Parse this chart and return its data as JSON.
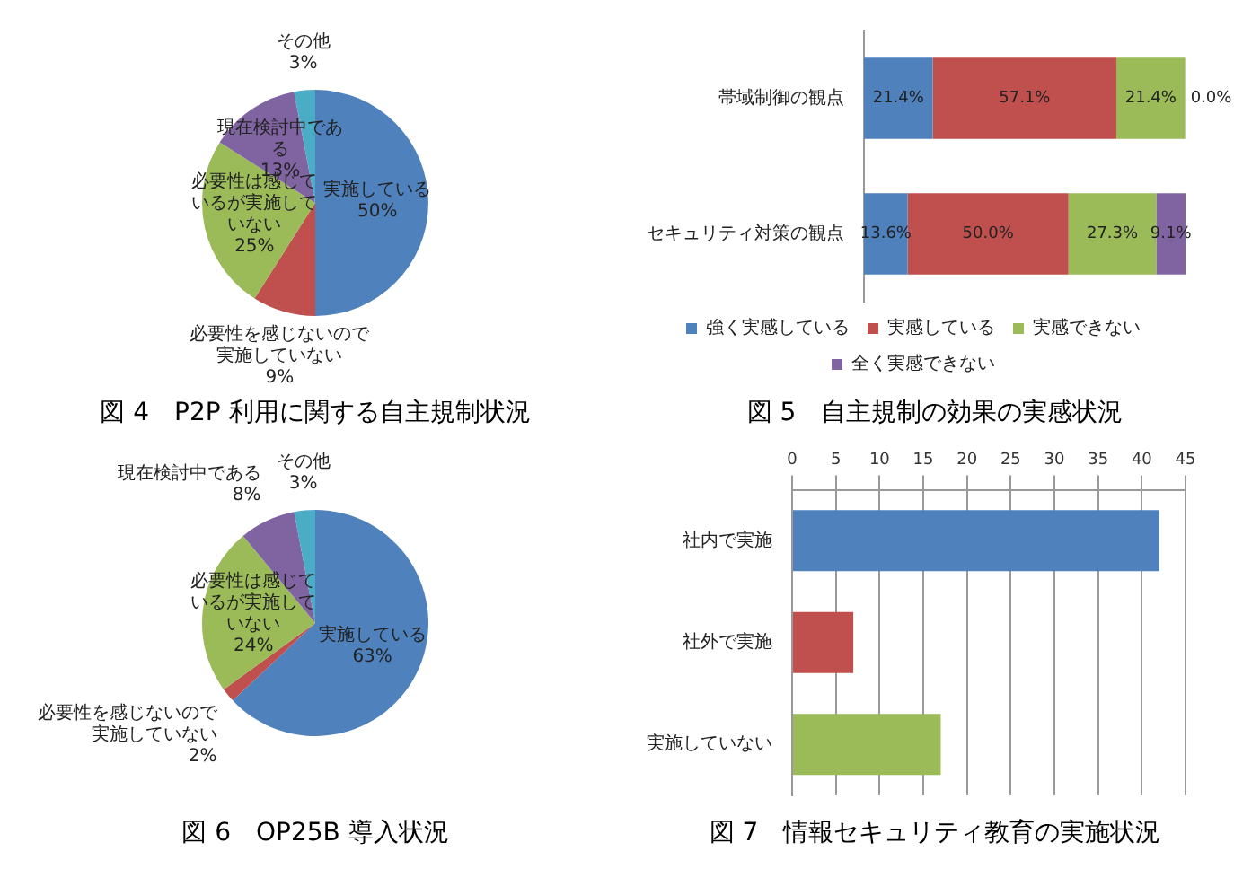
{
  "chart_data": [
    {
      "type": "pie",
      "title": "図 4　P2P 利用に関する自主規制状況",
      "categories": [
        "実施している",
        "必要性を感じないので実施していない",
        "必要性は感じているが実施していない",
        "現在検討中である",
        "その他"
      ],
      "values": [
        50,
        9,
        25,
        13,
        3
      ],
      "value_labels": [
        "50%",
        "9%",
        "25%",
        "13%",
        "3%"
      ],
      "colors": [
        "#4f81bd",
        "#c0504d",
        "#9bbb59",
        "#8064a2",
        "#4bacc6"
      ]
    },
    {
      "type": "bar",
      "orientation": "horizontal",
      "stacked": true,
      "title": "図 5　自主規制の効果の実感状況",
      "categories": [
        "帯域制御の観点",
        "セキュリティ対策の観点"
      ],
      "series": [
        {
          "name": "強く実感している",
          "color": "#4f81bd",
          "values": [
            21.4,
            13.6
          ],
          "value_labels": [
            "21.4%",
            "13.6%"
          ]
        },
        {
          "name": "実感している",
          "color": "#c0504d",
          "values": [
            57.1,
            50.0
          ],
          "value_labels": [
            "57.1%",
            "50.0%"
          ]
        },
        {
          "name": "実感できない",
          "color": "#9bbb59",
          "values": [
            21.4,
            27.3
          ],
          "value_labels": [
            "21.4%",
            "27.3%"
          ]
        },
        {
          "name": "全く実感できない",
          "color": "#8064a2",
          "values": [
            0.0,
            9.1
          ],
          "value_labels": [
            "0.0%",
            "9.1%"
          ]
        }
      ],
      "xlim": [
        0,
        100
      ],
      "tick_labels": "y",
      "legend": "bottom"
    },
    {
      "type": "pie",
      "title": "図 6　OP25B 導入状況",
      "categories": [
        "実施している",
        "必要性を感じないので実施していない",
        "必要性は感じているが実施していない",
        "現在検討中である",
        "その他"
      ],
      "values": [
        63,
        2,
        24,
        8,
        3
      ],
      "value_labels": [
        "63%",
        "2%",
        "24%",
        "8%",
        "3%"
      ],
      "colors": [
        "#4f81bd",
        "#c0504d",
        "#9bbb59",
        "#8064a2",
        "#4bacc6"
      ]
    },
    {
      "type": "bar",
      "orientation": "horizontal",
      "title": "図 7　情報セキュリティ教育の実施状況",
      "categories": [
        "社内で実施",
        "社外で実施",
        "実施していない"
      ],
      "values": [
        42,
        7,
        17
      ],
      "colors": [
        "#4f81bd",
        "#c0504d",
        "#9bbb59"
      ],
      "xlim": [
        0,
        45
      ],
      "xticks": [
        0,
        5,
        10,
        15,
        20,
        25,
        30,
        35,
        40,
        45
      ],
      "grid": "x"
    }
  ]
}
